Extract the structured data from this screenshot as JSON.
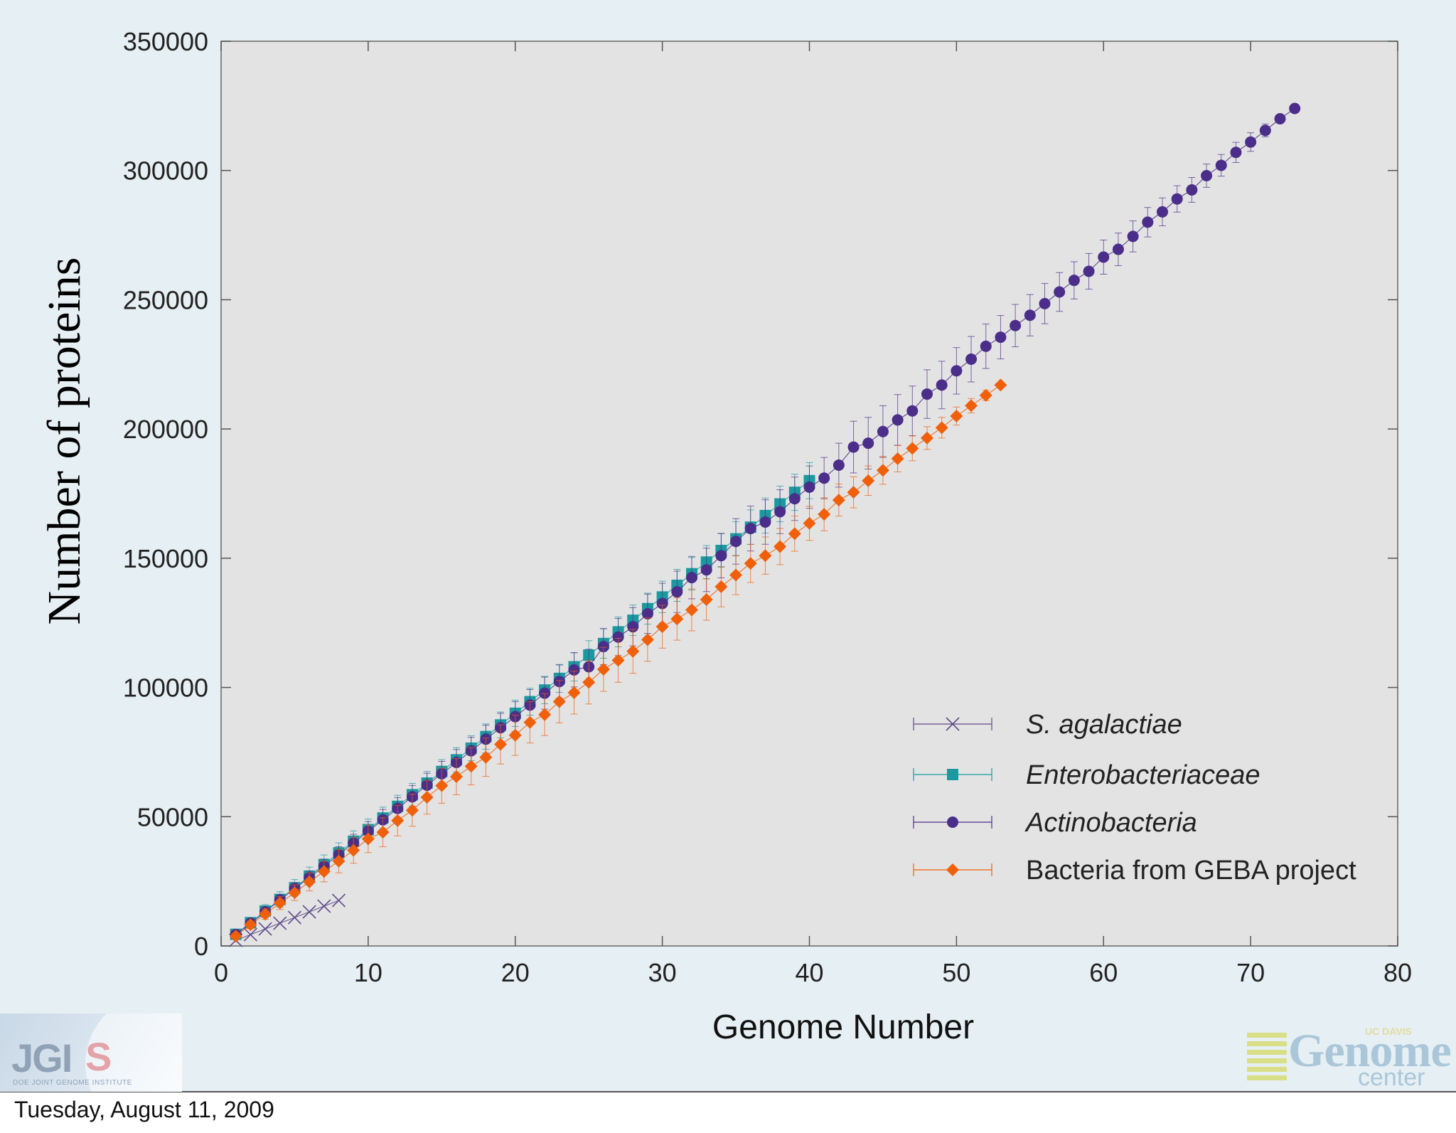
{
  "chart_data": {
    "type": "scatter",
    "xlabel": "Genome Number",
    "ylabel": "Number of proteins",
    "xlim": [
      0,
      80
    ],
    "ylim": [
      0,
      350000
    ],
    "x_ticks": [
      0,
      10,
      20,
      30,
      40,
      50,
      60,
      70,
      80
    ],
    "y_ticks": [
      0,
      50000,
      100000,
      150000,
      200000,
      250000,
      300000,
      350000
    ],
    "grid": false,
    "legend_position": "lower-right",
    "error_bars": true,
    "series": [
      {
        "name": "S. agalactiae",
        "marker": "x",
        "color": "#5e4a8a",
        "x": [
          1,
          2,
          3,
          4,
          5,
          6,
          7,
          8
        ],
        "y": [
          2200,
          4400,
          6600,
          8800,
          11000,
          13200,
          15400,
          17600
        ],
        "err": [
          0,
          0,
          0,
          0,
          0,
          0,
          0,
          0
        ]
      },
      {
        "name": "Enterobacteriaceae",
        "marker": "square",
        "color": "#1a9a9e",
        "x": [
          1,
          2,
          3,
          4,
          5,
          6,
          7,
          8,
          9,
          10,
          11,
          12,
          13,
          14,
          15,
          16,
          17,
          18,
          19,
          20,
          21,
          22,
          23,
          24,
          25,
          26,
          27,
          28,
          29,
          30,
          31,
          32,
          33,
          34,
          35,
          36,
          37,
          38,
          39,
          40
        ],
        "y": [
          4500,
          9000,
          13500,
          18000,
          22500,
          27000,
          31500,
          36000,
          40500,
          45000,
          49500,
          54000,
          58500,
          63000,
          67500,
          72000,
          76500,
          81000,
          85500,
          90000,
          94500,
          99000,
          103500,
          108000,
          112500,
          117000,
          121500,
          126000,
          130500,
          135000,
          139500,
          144000,
          148500,
          153000,
          157500,
          162000,
          166500,
          171000,
          175500,
          180000
        ],
        "err": [
          1500,
          2000,
          2500,
          3000,
          3200,
          3500,
          3700,
          3900,
          4000,
          4100,
          4200,
          4300,
          4400,
          4500,
          4600,
          4700,
          4800,
          4900,
          5000,
          5100,
          5200,
          5300,
          5400,
          5500,
          5600,
          5700,
          5800,
          5900,
          6000,
          6100,
          6200,
          6300,
          6400,
          6500,
          6600,
          6700,
          6800,
          6900,
          7000,
          7000
        ]
      },
      {
        "name": "Actinobacteria",
        "marker": "circle",
        "color": "#4b2e8a",
        "x": [
          1,
          2,
          3,
          4,
          5,
          6,
          7,
          8,
          9,
          10,
          11,
          12,
          13,
          14,
          15,
          16,
          17,
          18,
          19,
          20,
          21,
          22,
          23,
          24,
          25,
          26,
          27,
          28,
          29,
          30,
          31,
          32,
          33,
          34,
          35,
          36,
          37,
          38,
          39,
          40,
          41,
          42,
          43,
          44,
          45,
          46,
          47,
          48,
          49,
          50,
          51,
          52,
          53,
          54,
          55,
          56,
          57,
          58,
          59,
          60,
          61,
          62,
          63,
          64,
          65,
          66,
          67,
          68,
          69,
          70,
          71,
          72,
          73
        ],
        "y": [
          4400,
          8800,
          13200,
          17800,
          22200,
          26500,
          30800,
          35300,
          39800,
          44400,
          48800,
          53200,
          57700,
          62200,
          66600,
          71000,
          75500,
          80000,
          84400,
          88700,
          93200,
          97800,
          102300,
          106800,
          108000,
          115800,
          119500,
          123500,
          128500,
          132500,
          137000,
          142500,
          145500,
          151000,
          156500,
          161500,
          164000,
          168000,
          173000,
          177500,
          181000,
          186000,
          193000,
          194500,
          199000,
          203500,
          207000,
          213500,
          217000,
          222500,
          227000,
          232000,
          235500,
          240000,
          244000,
          248500,
          253000,
          257500,
          261000,
          266500,
          269500,
          274500,
          280000,
          284000,
          289000,
          292500,
          298000,
          302000,
          307000,
          311000,
          315500,
          320000,
          324000
        ],
        "err": [
          1000,
          1300,
          1600,
          1900,
          2200,
          2500,
          2800,
          3100,
          3400,
          3700,
          4000,
          4200,
          4400,
          4600,
          4800,
          5000,
          5200,
          5400,
          5600,
          5800,
          6000,
          6200,
          6400,
          6600,
          6800,
          7000,
          7200,
          7400,
          7600,
          7800,
          8000,
          8200,
          8400,
          8600,
          8800,
          8700,
          8600,
          8500,
          8400,
          8200,
          8000,
          8500,
          10000,
          10000,
          10000,
          9800,
          9600,
          9400,
          9200,
          9000,
          8800,
          8600,
          8400,
          8200,
          8000,
          7800,
          7500,
          7200,
          6900,
          6600,
          6300,
          6000,
          5700,
          5400,
          5100,
          4800,
          4500,
          4200,
          3900,
          3600,
          2500,
          1500,
          0
        ]
      },
      {
        "name": "Bacteria from GEBA project",
        "marker": "diamond",
        "color": "#f0600a",
        "x": [
          1,
          2,
          3,
          4,
          5,
          6,
          7,
          8,
          9,
          10,
          11,
          12,
          13,
          14,
          15,
          16,
          17,
          18,
          19,
          20,
          21,
          22,
          23,
          24,
          25,
          26,
          27,
          28,
          29,
          30,
          31,
          32,
          33,
          34,
          35,
          36,
          37,
          38,
          39,
          40,
          41,
          42,
          43,
          44,
          45,
          46,
          47,
          48,
          49,
          50,
          51,
          52,
          53
        ],
        "y": [
          3800,
          8200,
          12300,
          16600,
          20600,
          24800,
          28800,
          32800,
          37000,
          41400,
          44000,
          48500,
          52500,
          57500,
          62000,
          65500,
          69500,
          73000,
          78000,
          81500,
          86500,
          89500,
          94500,
          98000,
          102000,
          107000,
          110500,
          114000,
          118500,
          123500,
          126500,
          130000,
          134000,
          139000,
          143500,
          148000,
          151000,
          154500,
          159500,
          163500,
          167000,
          172500,
          175500,
          180000,
          184000,
          188500,
          192500,
          196500,
          200500,
          205000,
          209000,
          213000,
          217000
        ],
        "err": [
          1000,
          1500,
          2000,
          2500,
          3000,
          3500,
          4000,
          4500,
          5000,
          5300,
          5600,
          5900,
          6200,
          6500,
          6800,
          7000,
          7200,
          7400,
          7600,
          7800,
          8000,
          8100,
          8200,
          8300,
          8400,
          8500,
          8500,
          8500,
          8400,
          8300,
          8200,
          8100,
          8000,
          7800,
          7600,
          7400,
          7200,
          7000,
          6800,
          6600,
          6400,
          6200,
          6000,
          5700,
          5400,
          5100,
          4800,
          4400,
          4000,
          3500,
          2800,
          2000,
          0
        ]
      }
    ]
  },
  "footer": {
    "date": "Tuesday, August 11, 2009"
  },
  "logos": {
    "jgi_text": "JGI",
    "jgi_sub": "DOE JOINT GENOME INSTITUTE",
    "gc_org": "UC DAVIS",
    "gc_genome": "Genome",
    "gc_center": "center"
  }
}
